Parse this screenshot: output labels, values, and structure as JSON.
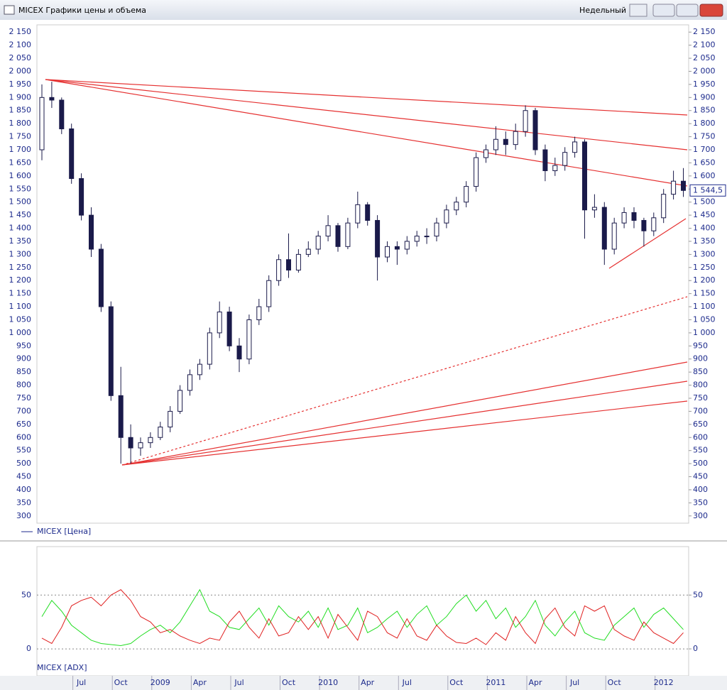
{
  "window": {
    "title": "MICEX Графики цены и объема",
    "period": "Недельный"
  },
  "chart_data": [
    {
      "type": "candlestick",
      "ylim": [
        275,
        2175
      ],
      "yticks": [
        300,
        350,
        400,
        450,
        500,
        550,
        600,
        650,
        700,
        750,
        800,
        850,
        900,
        950,
        {
          "value": 1000,
          "label": "1 000"
        },
        {
          "value": 1050,
          "label": "1 050"
        },
        {
          "value": 1100,
          "label": "1 100"
        },
        {
          "value": 1150,
          "label": "1 150"
        },
        {
          "value": 1200,
          "label": "1 200"
        },
        {
          "value": 1250,
          "label": "1 250"
        },
        {
          "value": 1300,
          "label": "1 300"
        },
        {
          "value": 1350,
          "label": "1 350"
        },
        {
          "value": 1400,
          "label": "1 400"
        },
        {
          "value": 1450,
          "label": "1 450"
        },
        {
          "value": 1500,
          "label": "1 500"
        },
        {
          "value": 1550,
          "label": "1 550"
        },
        {
          "value": 1600,
          "label": "1 600"
        },
        {
          "value": 1650,
          "label": "1 650"
        },
        {
          "value": 1700,
          "label": "1 700"
        },
        {
          "value": 1750,
          "label": "1 750"
        },
        {
          "value": 1800,
          "label": "1 800"
        },
        {
          "value": 1850,
          "label": "1 850"
        },
        {
          "value": 1900,
          "label": "1 900"
        },
        {
          "value": 1950,
          "label": "1 950"
        },
        {
          "value": 2000,
          "label": "2 000"
        },
        {
          "value": 2050,
          "label": "2 050"
        },
        {
          "value": 2100,
          "label": "2 100"
        },
        {
          "value": 2150,
          "label": "2 150"
        }
      ],
      "last_value": {
        "value": 1544.5,
        "label": "1 544,5"
      },
      "series": [
        {
          "name": "MICEX [Цена]",
          "color": "#1a1a4a",
          "open": [
            1700,
            1900,
            1890,
            1780,
            1590,
            1450,
            1320,
            1100,
            760,
            600,
            560,
            580,
            600,
            640,
            700,
            780,
            840,
            880,
            1000,
            1080,
            950,
            900,
            1050,
            1100,
            1200,
            1280,
            1240,
            1300,
            1320,
            1370,
            1410,
            1330,
            1420,
            1490,
            1430,
            1290,
            1330,
            1320,
            1350,
            1370,
            1370,
            1420,
            1470,
            1500,
            1560,
            1670,
            1700,
            1740,
            1720,
            1770,
            1850,
            1700,
            1620,
            1640,
            1690,
            1730,
            1470,
            1480,
            1320,
            1420,
            1460,
            1430,
            1390,
            1440,
            1530,
            1580
          ],
          "high": [
            1950,
            1960,
            1900,
            1800,
            1610,
            1480,
            1340,
            1120,
            870,
            650,
            600,
            620,
            660,
            720,
            800,
            860,
            900,
            1020,
            1120,
            1100,
            980,
            1070,
            1130,
            1220,
            1300,
            1380,
            1320,
            1350,
            1390,
            1450,
            1420,
            1440,
            1540,
            1500,
            1450,
            1350,
            1350,
            1370,
            1390,
            1400,
            1440,
            1490,
            1520,
            1580,
            1690,
            1720,
            1790,
            1770,
            1800,
            1870,
            1860,
            1720,
            1670,
            1710,
            1750,
            1740,
            1530,
            1500,
            1440,
            1480,
            1480,
            1440,
            1460,
            1550,
            1620,
            1630
          ],
          "low": [
            1660,
            1860,
            1760,
            1570,
            1430,
            1290,
            1080,
            740,
            500,
            500,
            530,
            560,
            590,
            620,
            690,
            760,
            820,
            860,
            980,
            930,
            850,
            880,
            1030,
            1080,
            1180,
            1210,
            1230,
            1290,
            1300,
            1350,
            1310,
            1320,
            1400,
            1410,
            1200,
            1270,
            1260,
            1300,
            1330,
            1340,
            1350,
            1400,
            1450,
            1480,
            1540,
            1650,
            1680,
            1680,
            1700,
            1750,
            1680,
            1580,
            1600,
            1620,
            1670,
            1360,
            1440,
            1260,
            1300,
            1400,
            1400,
            1330,
            1370,
            1420,
            1510,
            1520
          ],
          "close": [
            1900,
            1890,
            1780,
            1590,
            1450,
            1320,
            1100,
            760,
            600,
            560,
            580,
            600,
            640,
            700,
            780,
            840,
            880,
            1000,
            1080,
            950,
            900,
            1050,
            1100,
            1200,
            1280,
            1240,
            1300,
            1320,
            1370,
            1410,
            1330,
            1420,
            1490,
            1430,
            1290,
            1330,
            1320,
            1350,
            1370,
            1370,
            1420,
            1470,
            1500,
            1560,
            1670,
            1700,
            1740,
            1720,
            1770,
            1850,
            1700,
            1620,
            1640,
            1690,
            1730,
            1470,
            1480,
            1320,
            1420,
            1460,
            1430,
            1390,
            1440,
            1530,
            1580,
            1544.5
          ]
        }
      ]
    },
    {
      "type": "line",
      "title": "MICEX [ADX]",
      "ylim": [
        -25,
        95
      ],
      "yticks": [
        0,
        50
      ],
      "grid": "dashed",
      "categories": [
        null,
        null,
        null,
        null,
        "Jul",
        null,
        null,
        null,
        "Oct",
        null,
        null,
        null,
        "2009",
        null,
        null,
        null,
        "Apr",
        null,
        null,
        null,
        "Jul",
        null,
        null,
        null,
        null,
        "Oct",
        null,
        null,
        null,
        "2010",
        null,
        null,
        null,
        "Apr",
        null,
        null,
        null,
        "Jul",
        null,
        null,
        null,
        null,
        "Oct",
        null,
        null,
        null,
        "2011",
        null,
        null,
        null,
        "Apr",
        null,
        null,
        null,
        "Jul",
        null,
        null,
        null,
        "Oct",
        null,
        null,
        null,
        null,
        "2012",
        null,
        null
      ],
      "series": [
        {
          "color": "#22dd22",
          "values": [
            30,
            45,
            35,
            22,
            15,
            8,
            5,
            4,
            3,
            5,
            12,
            18,
            22,
            15,
            25,
            40,
            55,
            35,
            30,
            20,
            18,
            28,
            38,
            22,
            40,
            30,
            25,
            35,
            20,
            38,
            18,
            22,
            38,
            15,
            20,
            28,
            35,
            20,
            32,
            40,
            22,
            30,
            42,
            50,
            35,
            45,
            28,
            38,
            20,
            30,
            45,
            22,
            12,
            25,
            35,
            15,
            10,
            8,
            22,
            30,
            38,
            20,
            32,
            38,
            28,
            18
          ]
        },
        {
          "color": "#e02020",
          "values": [
            10,
            5,
            20,
            40,
            45,
            48,
            40,
            50,
            55,
            45,
            30,
            25,
            15,
            18,
            12,
            8,
            5,
            10,
            8,
            25,
            35,
            20,
            10,
            28,
            12,
            15,
            30,
            18,
            30,
            10,
            32,
            20,
            8,
            35,
            30,
            15,
            10,
            28,
            12,
            8,
            22,
            12,
            6,
            5,
            10,
            4,
            15,
            8,
            30,
            15,
            5,
            28,
            38,
            20,
            12,
            40,
            35,
            40,
            18,
            12,
            8,
            25,
            15,
            10,
            5,
            15
          ]
        }
      ]
    }
  ]
}
